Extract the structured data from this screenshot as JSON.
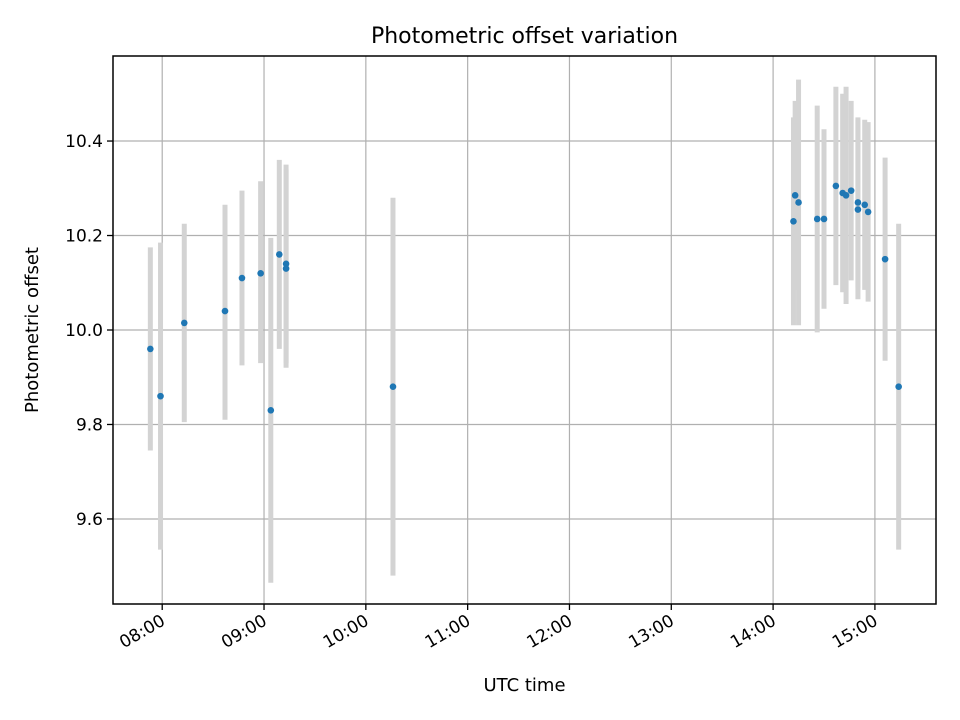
{
  "chart_data": {
    "type": "scatter",
    "title": "Photometric offset variation",
    "xlabel": "UTC time",
    "ylabel": "Photometric offset",
    "x_unit": "UTC hh:mm",
    "xlim": [
      "07:31",
      "15:36"
    ],
    "ylim": [
      9.42,
      10.58
    ],
    "x_ticks": [
      "08:00",
      "09:00",
      "10:00",
      "11:00",
      "12:00",
      "13:00",
      "14:00",
      "15:00"
    ],
    "y_ticks": [
      9.6,
      9.8,
      10.0,
      10.2,
      10.4
    ],
    "y_tick_labels": [
      "9.6",
      "9.8",
      "10.0",
      "10.2",
      "10.4"
    ],
    "grid": true,
    "marker_color": "#1f77b4",
    "errorbar_color": "#d3d3d3",
    "points": [
      {
        "x": "07:53",
        "y": 9.96,
        "ylow": 9.745,
        "yhigh": 10.175
      },
      {
        "x": "07:59",
        "y": 9.86,
        "ylow": 9.535,
        "yhigh": 10.185
      },
      {
        "x": "08:13",
        "y": 10.015,
        "ylow": 9.805,
        "yhigh": 10.225
      },
      {
        "x": "08:37",
        "y": 10.04,
        "ylow": 9.81,
        "yhigh": 10.265
      },
      {
        "x": "08:47",
        "y": 10.11,
        "ylow": 9.925,
        "yhigh": 10.295
      },
      {
        "x": "08:58",
        "y": 10.12,
        "ylow": 9.93,
        "yhigh": 10.315
      },
      {
        "x": "09:04",
        "y": 9.83,
        "ylow": 9.465,
        "yhigh": 10.195
      },
      {
        "x": "09:09",
        "y": 10.16,
        "ylow": 9.96,
        "yhigh": 10.36
      },
      {
        "x": "09:13",
        "y": 10.14,
        "ylow": 9.93,
        "yhigh": 10.35
      },
      {
        "x": "09:13",
        "y": 10.13,
        "ylow": 9.92,
        "yhigh": 10.34
      },
      {
        "x": "10:16",
        "y": 9.88,
        "ylow": 9.48,
        "yhigh": 10.28
      },
      {
        "x": "14:12",
        "y": 10.23,
        "ylow": 10.01,
        "yhigh": 10.45
      },
      {
        "x": "14:13",
        "y": 10.285,
        "ylow": 10.085,
        "yhigh": 10.485
      },
      {
        "x": "14:15",
        "y": 10.27,
        "ylow": 10.01,
        "yhigh": 10.53
      },
      {
        "x": "14:26",
        "y": 10.235,
        "ylow": 9.995,
        "yhigh": 10.475
      },
      {
        "x": "14:30",
        "y": 10.235,
        "ylow": 10.045,
        "yhigh": 10.425
      },
      {
        "x": "14:37",
        "y": 10.305,
        "ylow": 10.095,
        "yhigh": 10.515
      },
      {
        "x": "14:41",
        "y": 10.29,
        "ylow": 10.08,
        "yhigh": 10.5
      },
      {
        "x": "14:43",
        "y": 10.285,
        "ylow": 10.055,
        "yhigh": 10.515
      },
      {
        "x": "14:46",
        "y": 10.295,
        "ylow": 10.105,
        "yhigh": 10.485
      },
      {
        "x": "14:50",
        "y": 10.255,
        "ylow": 10.065,
        "yhigh": 10.445
      },
      {
        "x": "14:50",
        "y": 10.27,
        "ylow": 10.09,
        "yhigh": 10.45
      },
      {
        "x": "14:54",
        "y": 10.265,
        "ylow": 10.085,
        "yhigh": 10.445
      },
      {
        "x": "14:56",
        "y": 10.25,
        "ylow": 10.06,
        "yhigh": 10.44
      },
      {
        "x": "15:06",
        "y": 10.15,
        "ylow": 9.935,
        "yhigh": 10.365
      },
      {
        "x": "15:14",
        "y": 9.88,
        "ylow": 9.535,
        "yhigh": 10.225
      }
    ]
  }
}
